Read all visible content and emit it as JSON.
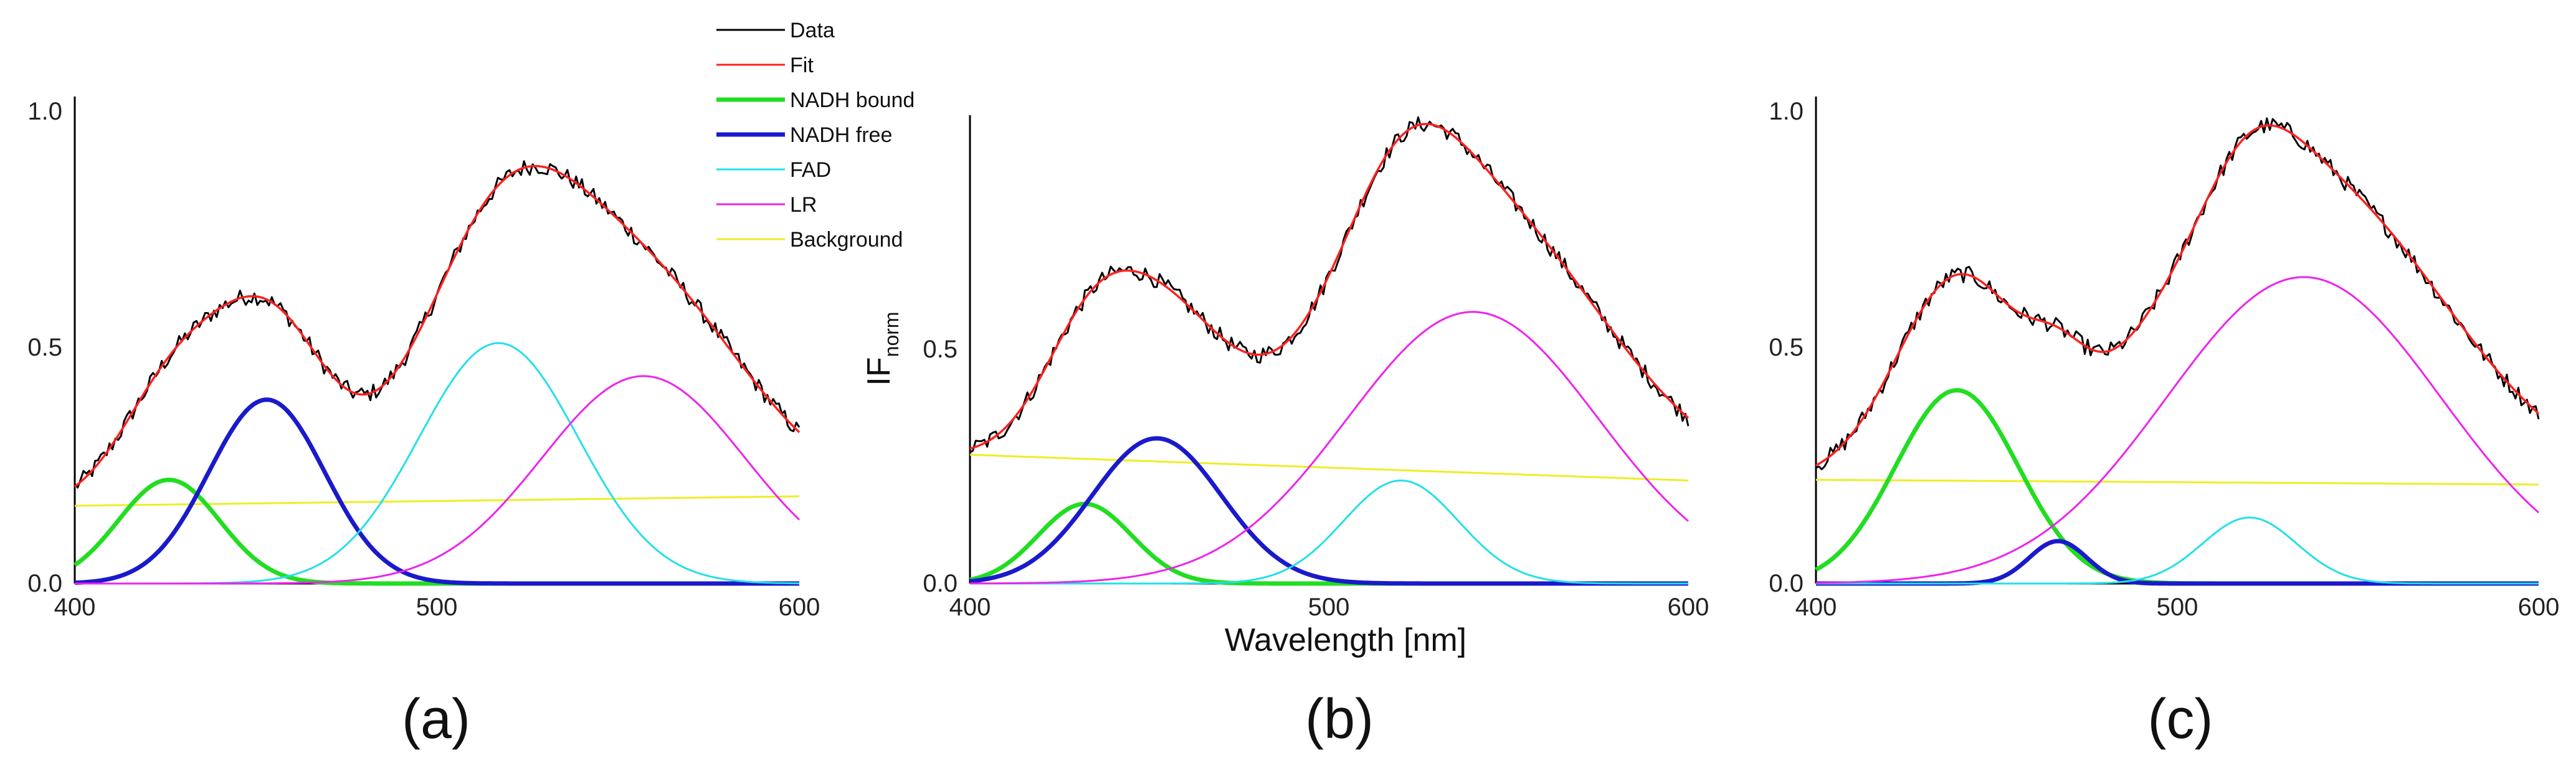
{
  "chart_data": [
    {
      "panel": "(a)",
      "type": "line",
      "xlabel": "",
      "ylabel": "",
      "xlim": [
        400,
        600
      ],
      "ylim": [
        0,
        1.0
      ],
      "xticks": [
        "400",
        "500",
        "600"
      ],
      "yticks": [
        "0.0",
        "0.5",
        "1.0"
      ],
      "components": [
        {
          "name": "NADH bound",
          "amp": 0.22,
          "center": 426,
          "sigma": 14
        },
        {
          "name": "NADH free",
          "amp": 0.39,
          "center": 453,
          "sigma": 16
        },
        {
          "name": "FAD",
          "amp": 0.51,
          "center": 517,
          "sigma": 22
        },
        {
          "name": "LR",
          "amp": 0.44,
          "center": 557,
          "sigma": 28
        }
      ],
      "background": [
        [
          400,
          0.165
        ],
        [
          600,
          0.185
        ]
      ],
      "noise_amplitude": 0.018
    },
    {
      "panel": "(b)",
      "type": "line",
      "xlabel": "Wavelength [nm]",
      "ylabel": "IF",
      "ylabel_sub": "norm",
      "xlim": [
        400,
        600
      ],
      "ylim": [
        0,
        1.0
      ],
      "xticks": [
        "400",
        "500",
        "600"
      ],
      "yticks": [
        "0.0",
        "0.5"
      ],
      "components": [
        {
          "name": "NADH bound",
          "amp": 0.17,
          "center": 432,
          "sigma": 13
        },
        {
          "name": "NADH free",
          "amp": 0.31,
          "center": 452,
          "sigma": 18
        },
        {
          "name": "FAD",
          "amp": 0.22,
          "center": 520,
          "sigma": 16
        },
        {
          "name": "LR",
          "amp": 0.58,
          "center": 540,
          "sigma": 35
        }
      ],
      "background": [
        [
          400,
          0.275
        ],
        [
          600,
          0.22
        ]
      ],
      "noise_amplitude": 0.018
    },
    {
      "panel": "(c)",
      "type": "line",
      "xlabel": "",
      "ylabel": "",
      "xlim": [
        400,
        600
      ],
      "ylim": [
        0,
        1.0
      ],
      "xticks": [
        "400",
        "500",
        "600"
      ],
      "yticks": [
        "0.0",
        "0.5",
        "1.0"
      ],
      "components": [
        {
          "name": "NADH bound",
          "amp": 0.41,
          "center": 439,
          "sigma": 17
        },
        {
          "name": "NADH free",
          "amp": 0.09,
          "center": 467,
          "sigma": 8
        },
        {
          "name": "FAD",
          "amp": 0.14,
          "center": 520,
          "sigma": 13
        },
        {
          "name": "LR",
          "amp": 0.65,
          "center": 535,
          "sigma": 38
        }
      ],
      "background": [
        [
          400,
          0.22
        ],
        [
          600,
          0.21
        ]
      ],
      "noise_amplitude": 0.018
    }
  ],
  "legend": [
    {
      "label": "Data",
      "color": "#000000"
    },
    {
      "label": "Fit",
      "color": "#ff2020"
    },
    {
      "label": "NADH bound",
      "color": "#22dd22"
    },
    {
      "label": "NADH free",
      "color": "#1a1acc"
    },
    {
      "label": "FAD",
      "color": "#22e0e8"
    },
    {
      "label": "LR",
      "color": "#ee22ee"
    },
    {
      "label": "Background",
      "color": "#eeee22"
    }
  ],
  "panel_labels": [
    "(a)",
    "(b)",
    "(c)"
  ]
}
